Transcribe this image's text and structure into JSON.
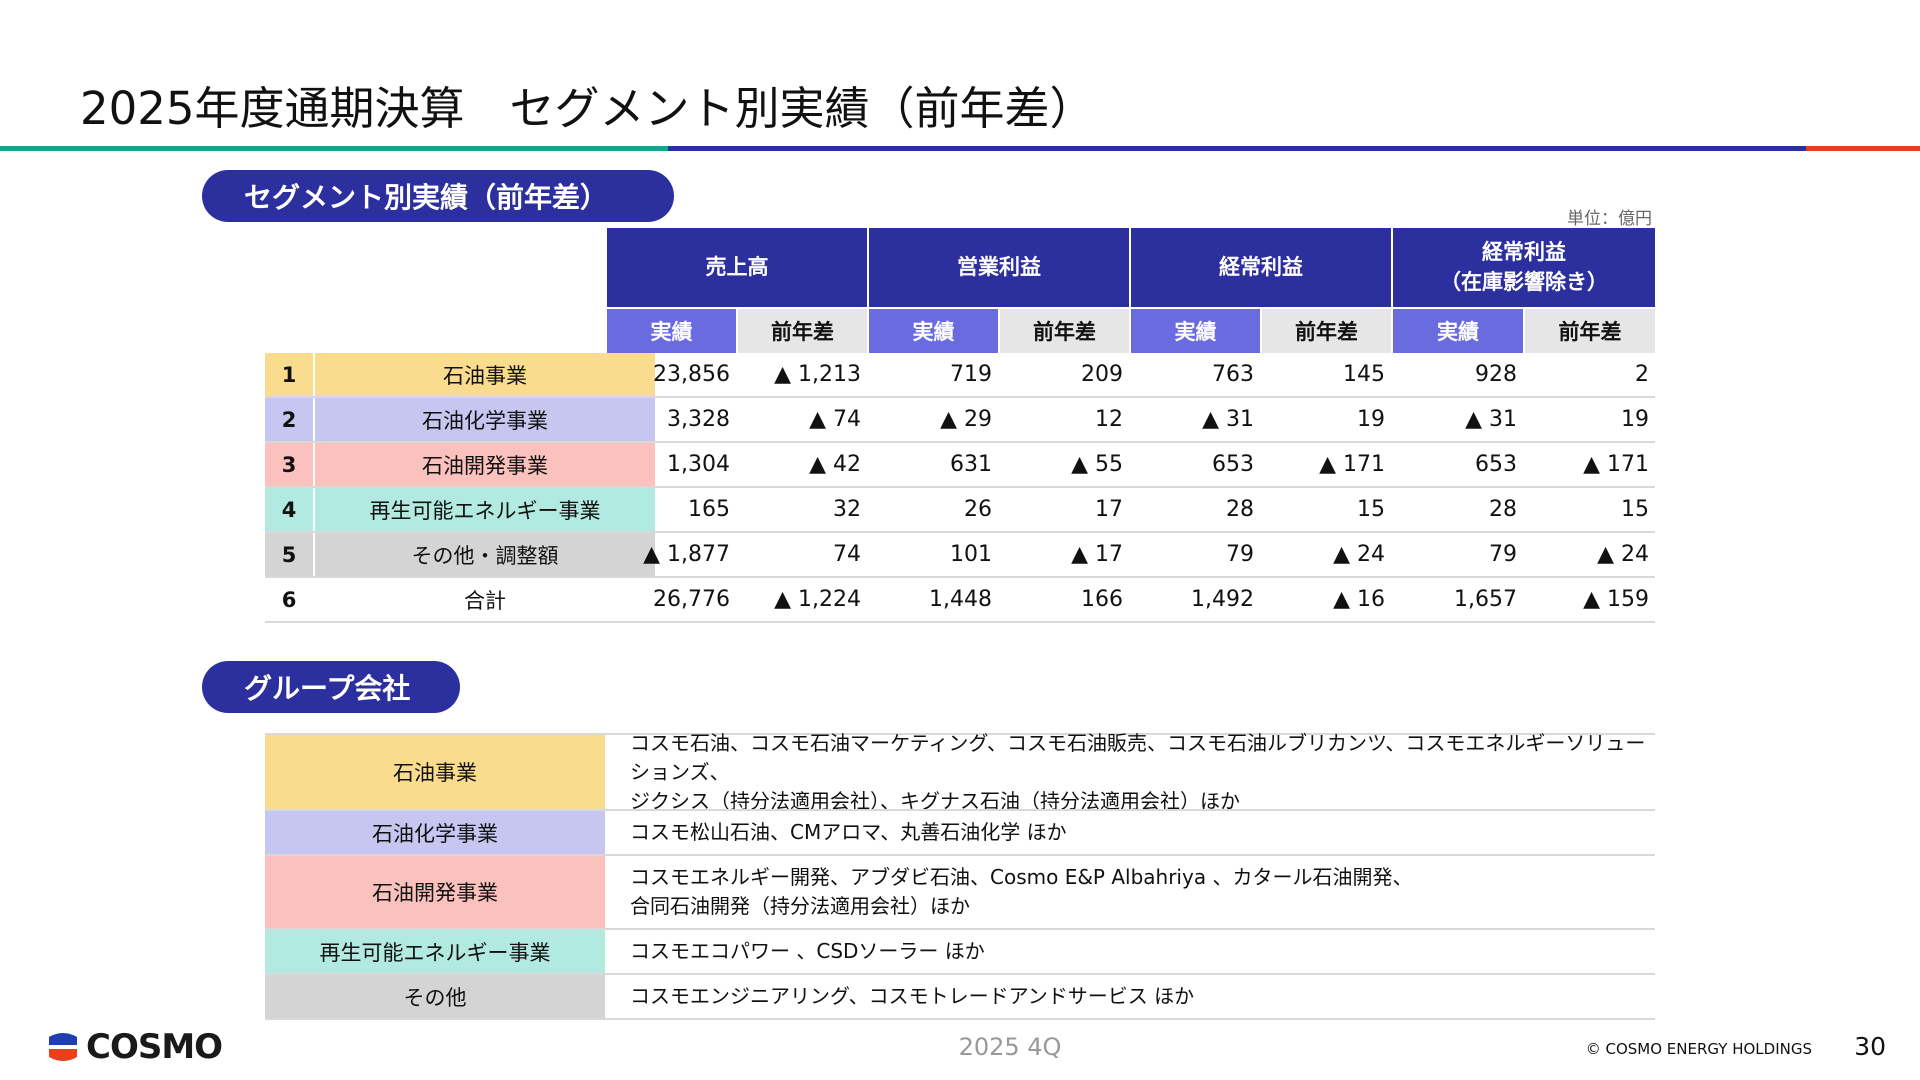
{
  "page_title": "2025年度通期決算　セグメント別実績（前年差）",
  "colors": {
    "navy": "#2c2f9e",
    "actual_header": "#6b6be0",
    "diff_header": "#e6e6e6",
    "rule_teal": "#1aa38f",
    "rule_navy": "#2c2f9e",
    "rule_red": "#e8401c",
    "row_petroleum": "#f9dc8d",
    "row_petrochem": "#c7c6f0",
    "row_development": "#fbc1bc",
    "row_renewable": "#b2e9e1",
    "row_other": "#d4d4d4"
  },
  "segment_section": {
    "label": "セグメント別実績（前年差）",
    "unit": "単位：億円",
    "column_groups": [
      "売上高",
      "営業利益",
      "経常利益",
      "経常利益\n（在庫影響除き）"
    ],
    "sub_headers": [
      "実績",
      "前年差",
      "実績",
      "前年差",
      "実績",
      "前年差",
      "実績",
      "前年差"
    ],
    "rows": [
      {
        "no": "1",
        "name": "石油事業",
        "values": [
          "23,856",
          "▲ 1,213",
          "719",
          "209",
          "763",
          "145",
          "928",
          "2"
        ]
      },
      {
        "no": "2",
        "name": "石油化学事業",
        "values": [
          "3,328",
          "▲ 74",
          "▲ 29",
          "12",
          "▲ 31",
          "19",
          "▲ 31",
          "19"
        ]
      },
      {
        "no": "3",
        "name": "石油開発事業",
        "values": [
          "1,304",
          "▲ 42",
          "631",
          "▲ 55",
          "653",
          "▲ 171",
          "653",
          "▲ 171"
        ]
      },
      {
        "no": "4",
        "name": "再生可能エネルギー事業",
        "values": [
          "165",
          "32",
          "26",
          "17",
          "28",
          "15",
          "28",
          "15"
        ]
      },
      {
        "no": "5",
        "name": "その他・調整額",
        "values": [
          "▲ 1,877",
          "74",
          "101",
          "▲ 17",
          "79",
          "▲ 24",
          "79",
          "▲ 24"
        ]
      },
      {
        "no": "6",
        "name": "合計",
        "values": [
          "26,776",
          "▲ 1,224",
          "1,448",
          "166",
          "1,492",
          "▲ 16",
          "1,657",
          "▲ 159"
        ]
      }
    ]
  },
  "group_section": {
    "label": "グループ会社",
    "rows": [
      {
        "name": "石油事業",
        "lines": [
          "コスモ石油、コスモ石油マーケティング、コスモ石油販売、コスモ石油ルブリカンツ、コスモエネルギーソリューションズ、",
          "ジクシス（持分法適用会社）、キグナス石油（持分法適用会社）ほか"
        ]
      },
      {
        "name": "石油化学事業",
        "lines": [
          "コスモ松山石油、CMアロマ、丸善石油化学 ほか"
        ]
      },
      {
        "name": "石油開発事業",
        "lines": [
          "コスモエネルギー開発、アブダビ石油、Cosmo E&P Albahriya 、カタール石油開発、",
          "合同石油開発（持分法適用会社）ほか"
        ]
      },
      {
        "name": "再生可能エネルギー事業",
        "lines": [
          "コスモエコパワー 、CSDソーラー ほか"
        ]
      },
      {
        "name": "その他",
        "lines": [
          "コスモエンジニアリング、コスモトレードアンドサービス ほか"
        ]
      }
    ]
  },
  "footer": {
    "logo_text": "COSMO",
    "period": "2025 4Q",
    "copyright": "© COSMO ENERGY HOLDINGS",
    "page_number": "30"
  }
}
